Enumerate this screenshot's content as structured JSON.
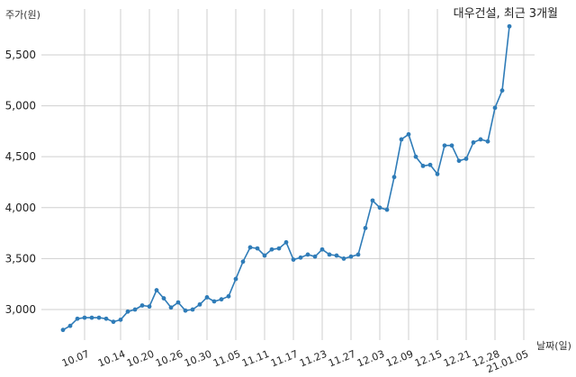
{
  "chart_data": {
    "type": "line",
    "title": "대우건설, 최근 3개월",
    "ylabel": "주가(원)",
    "xlabel": "날짜(일)",
    "ylim": [
      2700,
      5950
    ],
    "yticks": [
      3000,
      3500,
      4000,
      4500,
      5000,
      5500
    ],
    "ytick_labels": [
      "3,000",
      "3,500",
      "4,000",
      "4,500",
      "5,000",
      "5,500"
    ],
    "xticks": [
      {
        "index": 3,
        "label": "10.07"
      },
      {
        "index": 8,
        "label": "10.14"
      },
      {
        "index": 12,
        "label": "10.20"
      },
      {
        "index": 16,
        "label": "10.26"
      },
      {
        "index": 20,
        "label": "10.30"
      },
      {
        "index": 24,
        "label": "11.05"
      },
      {
        "index": 28,
        "label": "11.11"
      },
      {
        "index": 32,
        "label": "11.17"
      },
      {
        "index": 36,
        "label": "11.23"
      },
      {
        "index": 40,
        "label": "11.27"
      },
      {
        "index": 44,
        "label": "12.03"
      },
      {
        "index": 48,
        "label": "12.09"
      },
      {
        "index": 52,
        "label": "12.15"
      },
      {
        "index": 56,
        "label": "12.21"
      },
      {
        "index": 60,
        "label": "12.28"
      },
      {
        "index": 64,
        "label": "21.01.05"
      }
    ],
    "grid": true,
    "color": "#2f7cb8",
    "series": [
      {
        "values": [
          2800,
          2840,
          2910,
          2920,
          2920,
          2920,
          2910,
          2880,
          2900,
          2980,
          3000,
          3040,
          3030,
          3190,
          3110,
          3020,
          3070,
          2990,
          3000,
          3050,
          3120,
          3080,
          3100,
          3130,
          3300,
          3470,
          3610,
          3600,
          3530,
          3590,
          3600,
          3660,
          3490,
          3510,
          3540,
          3520,
          3590,
          3540,
          3530,
          3500,
          3520,
          3540,
          3800,
          4070,
          4000,
          3980,
          4300,
          4670,
          4720,
          4500,
          4410,
          4420,
          4330,
          4610,
          4610,
          4460,
          4480,
          4640,
          4670,
          4650,
          4980,
          5150,
          5780
        ]
      }
    ]
  }
}
